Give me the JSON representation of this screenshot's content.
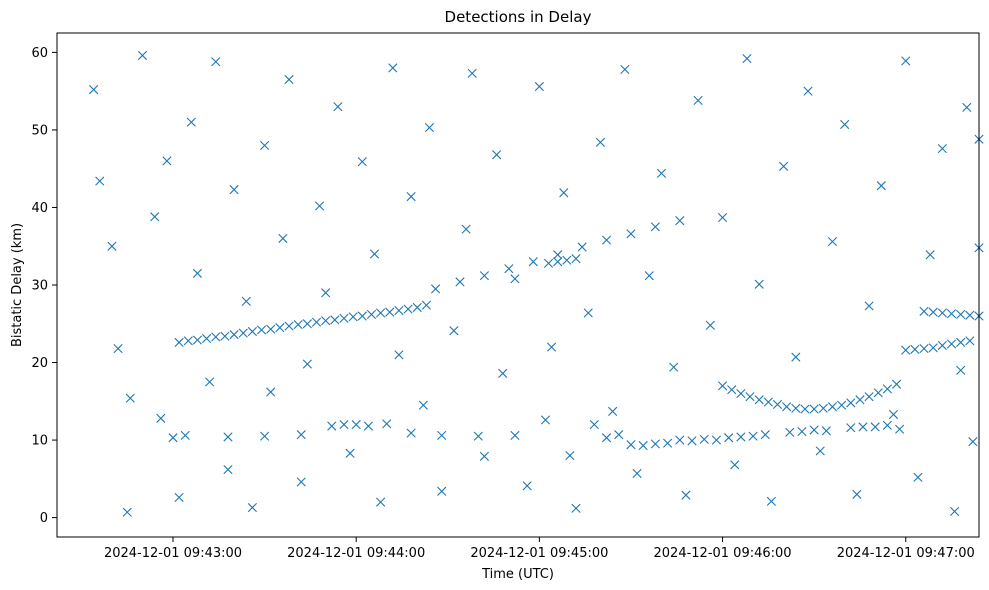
{
  "chart_data": {
    "type": "scatter",
    "title": "Detections in Delay",
    "xlabel": "Time (UTC)",
    "ylabel": "Bistatic Delay (km)",
    "x_is_time": true,
    "xlim": [
      "2024-12-01 09:42:22",
      "2024-12-01 09:47:24"
    ],
    "ylim": [
      -2.5,
      62.5
    ],
    "xticks": [
      {
        "t": "2024-12-01 09:43:00",
        "label": "2024-12-01 09:43:00"
      },
      {
        "t": "2024-12-01 09:44:00",
        "label": "2024-12-01 09:44:00"
      },
      {
        "t": "2024-12-01 09:45:00",
        "label": "2024-12-01 09:45:00"
      },
      {
        "t": "2024-12-01 09:46:00",
        "label": "2024-12-01 09:46:00"
      },
      {
        "t": "2024-12-01 09:47:00",
        "label": "2024-12-01 09:47:00"
      }
    ],
    "yticks": [
      0,
      10,
      20,
      30,
      40,
      50,
      60
    ],
    "grid": false,
    "marker": "x",
    "color": "#1f77b4",
    "series": [
      {
        "points": [
          [
            "2024-12-01 09:43:02",
            22.6
          ],
          [
            "2024-12-01 09:43:05",
            22.8
          ],
          [
            "2024-12-01 09:43:08",
            22.9
          ],
          [
            "2024-12-01 09:43:11",
            23.1
          ],
          [
            "2024-12-01 09:43:14",
            23.3
          ],
          [
            "2024-12-01 09:43:17",
            23.4
          ],
          [
            "2024-12-01 09:43:20",
            23.6
          ],
          [
            "2024-12-01 09:43:23",
            23.8
          ],
          [
            "2024-12-01 09:43:26",
            24.0
          ],
          [
            "2024-12-01 09:43:29",
            24.2
          ],
          [
            "2024-12-01 09:43:32",
            24.3
          ],
          [
            "2024-12-01 09:43:35",
            24.5
          ],
          [
            "2024-12-01 09:43:38",
            24.7
          ],
          [
            "2024-12-01 09:43:41",
            24.9
          ],
          [
            "2024-12-01 09:43:44",
            25.0
          ],
          [
            "2024-12-01 09:43:47",
            25.2
          ],
          [
            "2024-12-01 09:43:50",
            25.4
          ],
          [
            "2024-12-01 09:43:53",
            25.5
          ],
          [
            "2024-12-01 09:43:56",
            25.7
          ],
          [
            "2024-12-01 09:43:59",
            25.9
          ],
          [
            "2024-12-01 09:44:02",
            26.0
          ],
          [
            "2024-12-01 09:44:05",
            26.2
          ],
          [
            "2024-12-01 09:44:08",
            26.4
          ],
          [
            "2024-12-01 09:44:11",
            26.5
          ],
          [
            "2024-12-01 09:44:14",
            26.7
          ],
          [
            "2024-12-01 09:44:17",
            26.9
          ],
          [
            "2024-12-01 09:44:20",
            27.1
          ],
          [
            "2024-12-01 09:44:23",
            27.4
          ],
          [
            "2024-12-01 09:44:26",
            29.5
          ],
          [
            "2024-12-01 09:44:34",
            30.4
          ],
          [
            "2024-12-01 09:44:42",
            31.2
          ],
          [
            "2024-12-01 09:44:50",
            32.1
          ],
          [
            "2024-12-01 09:44:58",
            33.0
          ],
          [
            "2024-12-01 09:45:06",
            33.9
          ],
          [
            "2024-12-01 09:45:14",
            34.9
          ],
          [
            "2024-12-01 09:45:22",
            35.8
          ],
          [
            "2024-12-01 09:45:30",
            36.6
          ],
          [
            "2024-12-01 09:45:38",
            37.5
          ],
          [
            "2024-12-01 09:45:46",
            38.3
          ],
          [
            "2024-12-01 09:45:03",
            32.8
          ],
          [
            "2024-12-01 09:45:06",
            33.0
          ],
          [
            "2024-12-01 09:45:09",
            33.2
          ],
          [
            "2024-12-01 09:45:12",
            33.4
          ],
          [
            "2024-12-01 09:43:00",
            10.3
          ],
          [
            "2024-12-01 09:43:04",
            10.6
          ],
          [
            "2024-12-01 09:43:18",
            10.4
          ],
          [
            "2024-12-01 09:43:30",
            10.5
          ],
          [
            "2024-12-01 09:43:42",
            10.7
          ],
          [
            "2024-12-01 09:43:52",
            11.8
          ],
          [
            "2024-12-01 09:43:56",
            12.0
          ],
          [
            "2024-12-01 09:44:00",
            12.0
          ],
          [
            "2024-12-01 09:44:04",
            11.8
          ],
          [
            "2024-12-01 09:44:10",
            12.1
          ],
          [
            "2024-12-01 09:44:18",
            10.9
          ],
          [
            "2024-12-01 09:44:28",
            10.6
          ],
          [
            "2024-12-01 09:44:40",
            10.5
          ],
          [
            "2024-12-01 09:44:52",
            10.6
          ],
          [
            "2024-12-01 09:45:02",
            12.6
          ],
          [
            "2024-12-01 09:45:10",
            8.0
          ],
          [
            "2024-12-01 09:45:18",
            12.0
          ],
          [
            "2024-12-01 09:45:22",
            10.3
          ],
          [
            "2024-12-01 09:45:26",
            10.7
          ],
          [
            "2024-12-01 09:45:30",
            9.4
          ],
          [
            "2024-12-01 09:45:34",
            9.3
          ],
          [
            "2024-12-01 09:45:38",
            9.5
          ],
          [
            "2024-12-01 09:45:42",
            9.6
          ],
          [
            "2024-12-01 09:45:46",
            10.0
          ],
          [
            "2024-12-01 09:45:50",
            9.9
          ],
          [
            "2024-12-01 09:45:54",
            10.1
          ],
          [
            "2024-12-01 09:45:58",
            10.0
          ],
          [
            "2024-12-01 09:46:02",
            10.3
          ],
          [
            "2024-12-01 09:46:06",
            10.4
          ],
          [
            "2024-12-01 09:46:10",
            10.5
          ],
          [
            "2024-12-01 09:46:14",
            10.7
          ],
          [
            "2024-12-01 09:46:22",
            11.0
          ],
          [
            "2024-12-01 09:46:26",
            11.1
          ],
          [
            "2024-12-01 09:46:30",
            11.3
          ],
          [
            "2024-12-01 09:46:34",
            11.2
          ],
          [
            "2024-12-01 09:46:42",
            11.6
          ],
          [
            "2024-12-01 09:46:46",
            11.7
          ],
          [
            "2024-12-01 09:46:50",
            11.7
          ],
          [
            "2024-12-01 09:46:54",
            11.9
          ],
          [
            "2024-12-01 09:46:58",
            11.4
          ],
          [
            "2024-12-01 09:46:00",
            17.0
          ],
          [
            "2024-12-01 09:46:03",
            16.5
          ],
          [
            "2024-12-01 09:46:06",
            16.0
          ],
          [
            "2024-12-01 09:46:09",
            15.6
          ],
          [
            "2024-12-01 09:46:12",
            15.2
          ],
          [
            "2024-12-01 09:46:15",
            14.9
          ],
          [
            "2024-12-01 09:46:18",
            14.6
          ],
          [
            "2024-12-01 09:46:21",
            14.3
          ],
          [
            "2024-12-01 09:46:24",
            14.1
          ],
          [
            "2024-12-01 09:46:27",
            14.0
          ],
          [
            "2024-12-01 09:46:30",
            14.0
          ],
          [
            "2024-12-01 09:46:33",
            14.1
          ],
          [
            "2024-12-01 09:46:36",
            14.3
          ],
          [
            "2024-12-01 09:46:39",
            14.5
          ],
          [
            "2024-12-01 09:46:42",
            14.8
          ],
          [
            "2024-12-01 09:46:45",
            15.2
          ],
          [
            "2024-12-01 09:46:48",
            15.6
          ],
          [
            "2024-12-01 09:46:51",
            16.1
          ],
          [
            "2024-12-01 09:46:54",
            16.6
          ],
          [
            "2024-12-01 09:46:57",
            17.2
          ],
          [
            "2024-12-01 09:47:00",
            21.6
          ],
          [
            "2024-12-01 09:47:03",
            21.7
          ],
          [
            "2024-12-01 09:47:06",
            21.8
          ],
          [
            "2024-12-01 09:47:09",
            21.9
          ],
          [
            "2024-12-01 09:47:12",
            22.2
          ],
          [
            "2024-12-01 09:47:15",
            22.4
          ],
          [
            "2024-12-01 09:47:18",
            22.6
          ],
          [
            "2024-12-01 09:47:21",
            22.8
          ],
          [
            "2024-12-01 09:47:06",
            26.6
          ],
          [
            "2024-12-01 09:47:09",
            26.5
          ],
          [
            "2024-12-01 09:47:12",
            26.4
          ],
          [
            "2024-12-01 09:47:15",
            26.3
          ],
          [
            "2024-12-01 09:47:18",
            26.2
          ],
          [
            "2024-12-01 09:47:21",
            26.1
          ],
          [
            "2024-12-01 09:47:24",
            26.0
          ],
          [
            "2024-12-01 09:42:34",
            55.2
          ],
          [
            "2024-12-01 09:42:36",
            43.4
          ],
          [
            "2024-12-01 09:42:40",
            35.0
          ],
          [
            "2024-12-01 09:42:42",
            21.8
          ],
          [
            "2024-12-01 09:42:45",
            0.7
          ],
          [
            "2024-12-01 09:42:46",
            15.4
          ],
          [
            "2024-12-01 09:42:50",
            59.6
          ],
          [
            "2024-12-01 09:42:54",
            38.8
          ],
          [
            "2024-12-01 09:42:56",
            12.8
          ],
          [
            "2024-12-01 09:42:58",
            46.0
          ],
          [
            "2024-12-01 09:43:02",
            2.6
          ],
          [
            "2024-12-01 09:43:06",
            51.0
          ],
          [
            "2024-12-01 09:43:08",
            31.5
          ],
          [
            "2024-12-01 09:43:12",
            17.5
          ],
          [
            "2024-12-01 09:43:14",
            58.8
          ],
          [
            "2024-12-01 09:43:18",
            6.2
          ],
          [
            "2024-12-01 09:43:20",
            42.3
          ],
          [
            "2024-12-01 09:43:24",
            27.9
          ],
          [
            "2024-12-01 09:43:26",
            1.3
          ],
          [
            "2024-12-01 09:43:30",
            48.0
          ],
          [
            "2024-12-01 09:43:32",
            16.2
          ],
          [
            "2024-12-01 09:43:36",
            36.0
          ],
          [
            "2024-12-01 09:43:38",
            56.5
          ],
          [
            "2024-12-01 09:43:42",
            4.6
          ],
          [
            "2024-12-01 09:43:44",
            19.8
          ],
          [
            "2024-12-01 09:43:48",
            40.2
          ],
          [
            "2024-12-01 09:43:50",
            29.0
          ],
          [
            "2024-12-01 09:43:54",
            53.0
          ],
          [
            "2024-12-01 09:43:58",
            8.3
          ],
          [
            "2024-12-01 09:44:02",
            45.9
          ],
          [
            "2024-12-01 09:44:06",
            34.0
          ],
          [
            "2024-12-01 09:44:08",
            2.0
          ],
          [
            "2024-12-01 09:44:12",
            58.0
          ],
          [
            "2024-12-01 09:44:14",
            21.0
          ],
          [
            "2024-12-01 09:44:18",
            41.4
          ],
          [
            "2024-12-01 09:44:22",
            14.5
          ],
          [
            "2024-12-01 09:44:24",
            50.3
          ],
          [
            "2024-12-01 09:44:28",
            3.4
          ],
          [
            "2024-12-01 09:44:32",
            24.1
          ],
          [
            "2024-12-01 09:44:36",
            37.2
          ],
          [
            "2024-12-01 09:44:38",
            57.3
          ],
          [
            "2024-12-01 09:44:42",
            7.9
          ],
          [
            "2024-12-01 09:44:46",
            46.8
          ],
          [
            "2024-12-01 09:44:48",
            18.6
          ],
          [
            "2024-12-01 09:44:52",
            30.8
          ],
          [
            "2024-12-01 09:44:56",
            4.1
          ],
          [
            "2024-12-01 09:45:00",
            55.6
          ],
          [
            "2024-12-01 09:45:04",
            22.0
          ],
          [
            "2024-12-01 09:45:08",
            41.9
          ],
          [
            "2024-12-01 09:45:12",
            1.2
          ],
          [
            "2024-12-01 09:45:16",
            26.4
          ],
          [
            "2024-12-01 09:45:20",
            48.4
          ],
          [
            "2024-12-01 09:45:24",
            13.7
          ],
          [
            "2024-12-01 09:45:28",
            57.8
          ],
          [
            "2024-12-01 09:45:32",
            5.7
          ],
          [
            "2024-12-01 09:45:36",
            31.2
          ],
          [
            "2024-12-01 09:45:40",
            44.4
          ],
          [
            "2024-12-01 09:45:44",
            19.4
          ],
          [
            "2024-12-01 09:45:48",
            2.9
          ],
          [
            "2024-12-01 09:45:52",
            53.8
          ],
          [
            "2024-12-01 09:45:56",
            24.8
          ],
          [
            "2024-12-01 09:46:00",
            38.7
          ],
          [
            "2024-12-01 09:46:04",
            6.8
          ],
          [
            "2024-12-01 09:46:08",
            59.2
          ],
          [
            "2024-12-01 09:46:12",
            30.1
          ],
          [
            "2024-12-01 09:46:16",
            2.1
          ],
          [
            "2024-12-01 09:46:20",
            45.3
          ],
          [
            "2024-12-01 09:46:24",
            20.7
          ],
          [
            "2024-12-01 09:46:28",
            55.0
          ],
          [
            "2024-12-01 09:46:32",
            8.6
          ],
          [
            "2024-12-01 09:46:36",
            35.6
          ],
          [
            "2024-12-01 09:46:40",
            50.7
          ],
          [
            "2024-12-01 09:46:44",
            3.0
          ],
          [
            "2024-12-01 09:46:48",
            27.3
          ],
          [
            "2024-12-01 09:46:52",
            42.8
          ],
          [
            "2024-12-01 09:46:56",
            13.3
          ],
          [
            "2024-12-01 09:47:00",
            58.9
          ],
          [
            "2024-12-01 09:47:04",
            5.2
          ],
          [
            "2024-12-01 09:47:08",
            33.9
          ],
          [
            "2024-12-01 09:47:12",
            47.6
          ],
          [
            "2024-12-01 09:47:16",
            0.8
          ],
          [
            "2024-12-01 09:47:18",
            19.0
          ],
          [
            "2024-12-01 09:47:20",
            52.9
          ],
          [
            "2024-12-01 09:47:22",
            9.8
          ],
          [
            "2024-12-01 09:47:24",
            34.8
          ],
          [
            "2024-12-01 09:47:24",
            48.8
          ]
        ]
      }
    ]
  }
}
